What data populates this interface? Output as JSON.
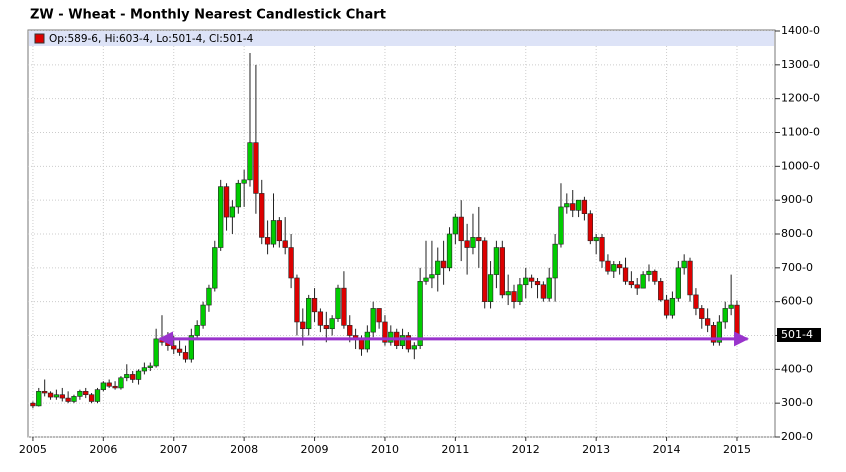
{
  "chart_data": {
    "type": "candlestick",
    "title": "ZW - Wheat - Monthly Nearest Candlestick Chart",
    "legend": "Op:589-6, Hi:603-4, Lo:501-4, Cl:501-4",
    "legend_color": "#dd0000",
    "up_color": "#00cc00",
    "down_color": "#dd0000",
    "x": [
      2005,
      2005.083,
      2005.167,
      2005.25,
      2005.333,
      2005.417,
      2005.5,
      2005.583,
      2005.667,
      2005.75,
      2005.833,
      2005.917,
      2006,
      2006.083,
      2006.167,
      2006.25,
      2006.333,
      2006.417,
      2006.5,
      2006.583,
      2006.667,
      2006.75,
      2006.833,
      2006.917,
      2007,
      2007.083,
      2007.167,
      2007.25,
      2007.333,
      2007.417,
      2007.5,
      2007.583,
      2007.667,
      2007.75,
      2007.833,
      2007.917,
      2008,
      2008.083,
      2008.167,
      2008.25,
      2008.333,
      2008.417,
      2008.5,
      2008.583,
      2008.667,
      2008.75,
      2008.833,
      2008.917,
      2009,
      2009.083,
      2009.167,
      2009.25,
      2009.333,
      2009.417,
      2009.5,
      2009.583,
      2009.667,
      2009.75,
      2009.833,
      2009.917,
      2010,
      2010.083,
      2010.167,
      2010.25,
      2010.333,
      2010.417,
      2010.5,
      2010.583,
      2010.667,
      2010.75,
      2010.833,
      2010.917,
      2011,
      2011.083,
      2011.167,
      2011.25,
      2011.333,
      2011.417,
      2011.5,
      2011.583,
      2011.667,
      2011.75,
      2011.833,
      2011.917,
      2012,
      2012.083,
      2012.167,
      2012.25,
      2012.333,
      2012.417,
      2012.5,
      2012.583,
      2012.667,
      2012.75,
      2012.833,
      2012.917,
      2013,
      2013.083,
      2013.167,
      2013.25,
      2013.333,
      2013.417,
      2013.5,
      2013.583,
      2013.667,
      2013.75,
      2013.833,
      2013.917,
      2014,
      2014.083,
      2014.167,
      2014.25,
      2014.333,
      2014.417,
      2014.5,
      2014.583,
      2014.667,
      2014.75,
      2014.833,
      2014.917,
      2015
    ],
    "open": [
      300,
      292,
      335,
      330,
      318,
      325,
      315,
      305,
      320,
      335,
      325,
      305,
      340,
      360,
      350,
      345,
      375,
      385,
      370,
      395,
      405,
      410,
      490,
      480,
      470,
      460,
      450,
      430,
      500,
      530,
      590,
      640,
      760,
      940,
      850,
      880,
      950,
      960,
      1070,
      920,
      790,
      770,
      840,
      780,
      760,
      670,
      540,
      520,
      610,
      570,
      530,
      520,
      550,
      640,
      530,
      500,
      490,
      460,
      510,
      580,
      540,
      480,
      510,
      470,
      500,
      460,
      470,
      660,
      670,
      680,
      720,
      700,
      800,
      850,
      780,
      760,
      790,
      780,
      600,
      680,
      760,
      620,
      630,
      600,
      650,
      670,
      660,
      650,
      610,
      670,
      770,
      880,
      890,
      870,
      900,
      860,
      780,
      790,
      720,
      690,
      710,
      700,
      660,
      650,
      640,
      680,
      690,
      660,
      605,
      560,
      610,
      700,
      720,
      620,
      580,
      550,
      530,
      480,
      540,
      580,
      589.75
    ],
    "high": [
      305,
      345,
      370,
      335,
      340,
      345,
      335,
      325,
      340,
      345,
      330,
      345,
      365,
      370,
      365,
      380,
      415,
      395,
      400,
      420,
      420,
      520,
      560,
      510,
      500,
      485,
      470,
      520,
      545,
      600,
      650,
      780,
      960,
      950,
      900,
      960,
      990,
      1335,
      1300,
      960,
      840,
      920,
      850,
      850,
      800,
      680,
      580,
      620,
      640,
      580,
      570,
      560,
      650,
      690,
      560,
      520,
      500,
      530,
      600,
      580,
      560,
      530,
      520,
      520,
      510,
      480,
      700,
      780,
      780,
      760,
      780,
      820,
      860,
      900,
      830,
      860,
      880,
      790,
      720,
      780,
      780,
      680,
      650,
      670,
      700,
      680,
      670,
      660,
      700,
      800,
      950,
      920,
      930,
      900,
      910,
      870,
      800,
      800,
      740,
      720,
      720,
      730,
      690,
      670,
      690,
      710,
      695,
      670,
      620,
      630,
      720,
      740,
      730,
      640,
      590,
      580,
      540,
      560,
      600,
      680,
      603.5
    ],
    "low": [
      285,
      290,
      320,
      310,
      310,
      305,
      300,
      300,
      310,
      315,
      300,
      300,
      335,
      345,
      340,
      340,
      365,
      360,
      355,
      385,
      395,
      405,
      470,
      455,
      445,
      440,
      420,
      420,
      490,
      520,
      570,
      630,
      750,
      810,
      800,
      860,
      880,
      940,
      860,
      770,
      740,
      760,
      760,
      740,
      640,
      500,
      470,
      500,
      540,
      510,
      480,
      500,
      540,
      520,
      480,
      460,
      440,
      450,
      495,
      520,
      470,
      470,
      460,
      460,
      450,
      430,
      460,
      650,
      640,
      630,
      650,
      690,
      770,
      720,
      680,
      740,
      700,
      580,
      580,
      640,
      610,
      590,
      580,
      590,
      610,
      640,
      610,
      600,
      600,
      600,
      760,
      860,
      850,
      850,
      840,
      770,
      740,
      700,
      680,
      670,
      680,
      650,
      640,
      620,
      640,
      660,
      650,
      600,
      550,
      550,
      600,
      680,
      600,
      560,
      520,
      510,
      470,
      470,
      520,
      560,
      501.5
    ],
    "close": [
      292,
      335,
      330,
      318,
      325,
      315,
      305,
      320,
      335,
      325,
      305,
      340,
      360,
      350,
      345,
      375,
      385,
      370,
      395,
      405,
      410,
      490,
      480,
      470,
      460,
      450,
      430,
      500,
      530,
      590,
      640,
      760,
      940,
      850,
      880,
      950,
      960,
      1070,
      920,
      790,
      770,
      840,
      780,
      760,
      670,
      540,
      520,
      610,
      570,
      530,
      520,
      550,
      640,
      530,
      500,
      490,
      460,
      510,
      580,
      540,
      480,
      510,
      470,
      500,
      460,
      470,
      660,
      670,
      680,
      720,
      700,
      800,
      850,
      780,
      760,
      790,
      780,
      600,
      680,
      760,
      620,
      630,
      600,
      650,
      670,
      660,
      650,
      610,
      670,
      770,
      880,
      890,
      870,
      900,
      860,
      780,
      790,
      720,
      690,
      710,
      700,
      660,
      650,
      640,
      680,
      690,
      660,
      605,
      560,
      610,
      700,
      720,
      620,
      580,
      550,
      530,
      480,
      540,
      580,
      590,
      501.5
    ],
    "xlim": [
      2004.93,
      2015.54
    ],
    "xticks": [
      2005,
      2006,
      2007,
      2008,
      2009,
      2010,
      2011,
      2012,
      2013,
      2014,
      2015
    ],
    "ylim": [
      200,
      1400
    ],
    "yticks": [
      {
        "value": 200,
        "label": "200-0"
      },
      {
        "value": 300,
        "label": "300-0"
      },
      {
        "value": 400,
        "label": "400-0"
      },
      {
        "value": 500,
        "label": "500-0"
      },
      {
        "value": 600,
        "label": "600-0"
      },
      {
        "value": 700,
        "label": "700-0"
      },
      {
        "value": 800,
        "label": "800-0"
      },
      {
        "value": 900,
        "label": "900-0"
      },
      {
        "value": 1000,
        "label": "1000-0"
      },
      {
        "value": 1100,
        "label": "1100-0"
      },
      {
        "value": 1200,
        "label": "1200-0"
      },
      {
        "value": 1300,
        "label": "1300-0"
      },
      {
        "value": 1400,
        "label": "1400-0"
      }
    ],
    "grid": true,
    "last_price": {
      "value": 501.5,
      "label": "501-4"
    },
    "arrow": {
      "x": [
        2006.8,
        2015.15
      ],
      "y": 490,
      "color": "#9933cc"
    }
  }
}
